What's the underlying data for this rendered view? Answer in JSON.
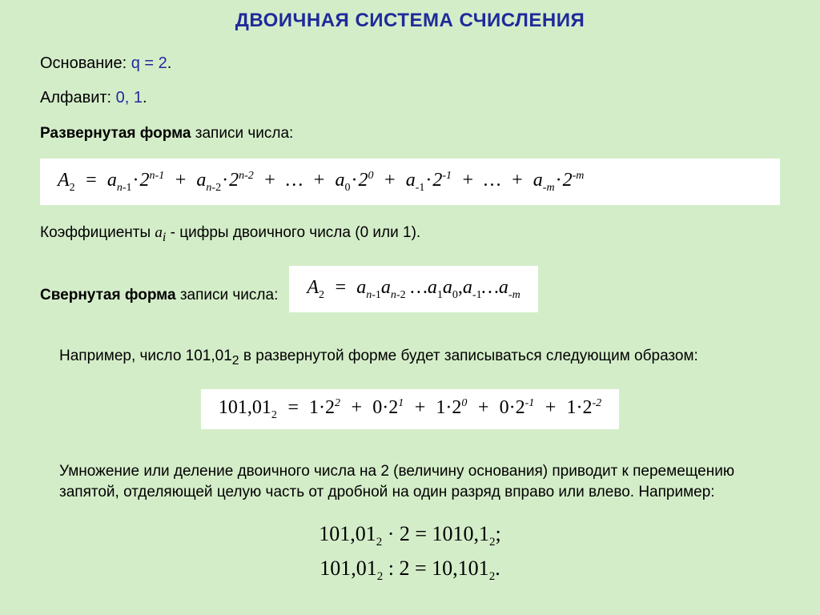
{
  "background_color": "#d4edc9",
  "accent_color": "#1f2a9a",
  "formula_bg": "#ffffff",
  "title": "ДВОИЧНАЯ СИСТЕМА СЧИСЛЕНИЯ",
  "base": {
    "label": "Основание: ",
    "valueLabel": "q",
    "eq": " = ",
    "value": "2",
    "period": "."
  },
  "alphabet": {
    "label": "Алфавит: ",
    "value": "0, 1",
    "period": "."
  },
  "expanded": {
    "label": "Развернутая форма",
    "tail": " записи числа:"
  },
  "coeffs": {
    "pre": "Коэффициенты  ",
    "sym": "a",
    "sub": "i",
    "post": " - цифры двоичного числа (0 или 1)."
  },
  "compact": {
    "label": "Свернутая форма",
    "tail": " записи числа:"
  },
  "example": {
    "text1": "Например, число 101,01",
    "sub": "2",
    "text2": " в развернутой форме будет записываться следующим образом:"
  },
  "shift": {
    "text": "Умножение или деление двоичного числа на 2 (величину основания) приводит к перемещению запятой, отделяющей целую часть от дробной на один разряд вправо или влево. Например:"
  },
  "formulas": {
    "expanded_html": "A<sub>2</sub> &nbsp;=&nbsp; a<sub class='it'>n-</sub><sub>1</sub><span class='dot'>·</span>2<sup class='it'>n-</sup><sup>1</sup>&nbsp; +&nbsp; a<sub class='it'>n-</sub><sub>2</sub><span class='dot'>·</span>2<sup class='it'>n-</sup><sup>2</sup>&nbsp; +&nbsp; …&nbsp; +&nbsp; a<sub>0</sub><span class='dot'>·</span>2<sup>0</sup>&nbsp; +&nbsp; a<sub>-1</sub><span class='dot'>·</span>2<sup>-1</sup>&nbsp; +&nbsp; …&nbsp; +&nbsp; a<sub class='it'>-m</sub><span class='dot'>·</span>2<sup class='it'>-m</sup>",
    "compact_html": "A<sub>2</sub> &nbsp;=&nbsp; a<sub class='it'>n-</sub><sub>1</sub>a<sub class='it'>n-</sub><sub>2</sub> …a<sub>1</sub>a<sub>0</sub><span class='rm'>,</span>a<sub>-1</sub>…a<sub class='it'>-m</sub>",
    "example_html": "<span class='rm'>101,01</span><sub>2</sub> &nbsp;=&nbsp; <span class='rm'>1·2</span><sup>2</sup>&nbsp; +&nbsp; <span class='rm'>0·2</span><sup>1</sup>&nbsp; +&nbsp; <span class='rm'>1·2</span><sup>0</sup>&nbsp; +&nbsp; <span class='rm'>0·2</span><sup>-1</sup>&nbsp; +&nbsp; <span class='rm'>1·2</span><sup>-2</sup>",
    "shift_mul_html": "101,01<sub>2</sub> · 2 = 1010,1<sub>2</sub>;",
    "shift_div_html": "101,01<sub>2</sub> : 2 = 10,101<sub>2</sub>."
  }
}
